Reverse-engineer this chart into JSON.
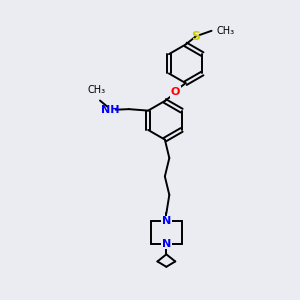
{
  "bg_color": "#eaecf2",
  "line_color": "#000000",
  "N_color": "#0000ff",
  "O_color": "#ff0000",
  "S_color": "#cccc00",
  "font_size": 8,
  "bond_width": 1.4,
  "figsize": [
    3.0,
    3.0
  ],
  "dpi": 100,
  "xlim": [
    0,
    10
  ],
  "ylim": [
    0,
    10
  ]
}
